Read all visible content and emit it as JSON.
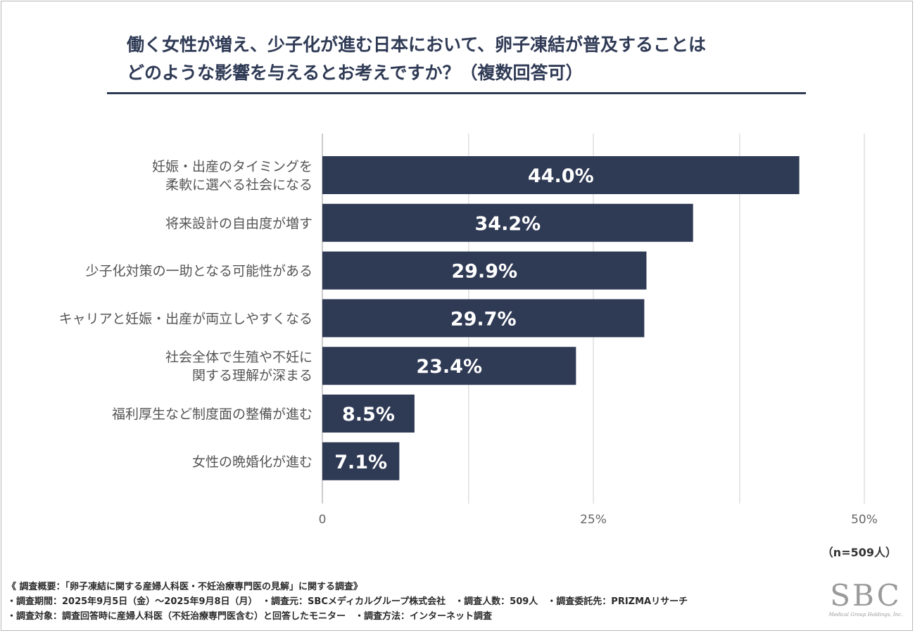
{
  "title": {
    "line1": "働く女性が増え、少子化が進む日本において、卵子凍結が普及することは",
    "line2": "どのような影響を与えるとお考えですか？（複数回答可）"
  },
  "colors": {
    "bar": "#2f3a55",
    "grid": "#cfcfcf",
    "text": "#555555"
  },
  "chart_data": {
    "type": "bar",
    "orientation": "horizontal",
    "categories": [
      [
        "妊娠・出産のタイミングを",
        "柔軟に選べる社会になる"
      ],
      [
        "将来設計の自由度が増す"
      ],
      [
        "少子化対策の一助となる可能性がある"
      ],
      [
        "キャリアと妊娠・出産が両立しやすくなる"
      ],
      [
        "社会全体で生殖や不妊に",
        "関する理解が深まる"
      ],
      [
        "福利厚生など制度面の整備が進む"
      ],
      [
        "女性の晩婚化が進む"
      ]
    ],
    "values": [
      44.0,
      34.2,
      29.9,
      29.7,
      23.4,
      8.5,
      7.1
    ],
    "value_labels": [
      "44.0%",
      "34.2%",
      "29.9%",
      "29.7%",
      "23.4%",
      "8.5%",
      "7.1%"
    ],
    "xlim": [
      0,
      50
    ],
    "ticks": [
      0,
      25,
      50
    ],
    "tick_labels": [
      "0",
      "25%",
      "50%"
    ],
    "gridlines": [
      0,
      13.5,
      25,
      38.5,
      50
    ]
  },
  "sample_size": "（n=509人）",
  "notes": [
    "《 調査概要：「卵子凍結に関する産婦人科医・不妊治療専門医の見解」に関する調査》",
    "・調査期間：2025年9月5日（金）～2025年9月8日（月）　・調査元：SBCメディカルグループ株式会社　・調査人数：509人　・調査委託先：PRIZMAリサーチ",
    "・調査対象：調査回答時に産婦人科医（不妊治療専門医含む）と回答したモニター　・調査方法：インターネット調査"
  ],
  "logo": {
    "mark": "SBC",
    "sub": "Medical Group Holdings, Inc."
  }
}
